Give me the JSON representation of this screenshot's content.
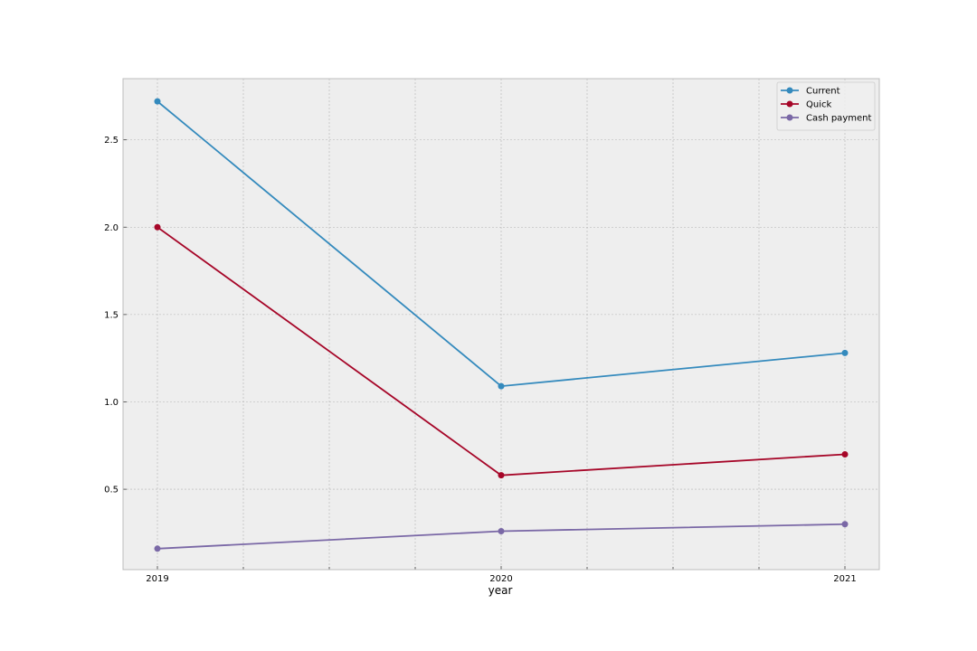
{
  "chart_data": {
    "type": "line",
    "title": "",
    "xlabel": "year",
    "ylabel": "",
    "x": [
      2019,
      2020,
      2021
    ],
    "x_tick_labels": [
      "2019",
      "2020",
      "2021"
    ],
    "x_minor_ticks": [
      2019.25,
      2019.5,
      2019.75,
      2020.25,
      2020.5,
      2020.75
    ],
    "xlim": [
      2018.9,
      2021.1
    ],
    "y_ticks": [
      0.5,
      1.0,
      1.5,
      2.0,
      2.5
    ],
    "y_tick_labels": [
      "0.5",
      "1.0",
      "1.5",
      "2.0",
      "2.5"
    ],
    "ylim": [
      0.04,
      2.85
    ],
    "grid": true,
    "legend_position": "top-right",
    "series": [
      {
        "name": "Current",
        "color": "#348ABD",
        "values": [
          2.72,
          1.09,
          1.28
        ]
      },
      {
        "name": "Quick",
        "color": "#A60628",
        "values": [
          2.0,
          0.58,
          0.7
        ]
      },
      {
        "name": "Cash payment",
        "color": "#7A68A6",
        "values": [
          0.16,
          0.26,
          0.3
        ]
      }
    ],
    "colors": {
      "plot_background": "#EEEEEE",
      "grid": "#B2B2B2",
      "frame": "#BCBCBC"
    }
  }
}
